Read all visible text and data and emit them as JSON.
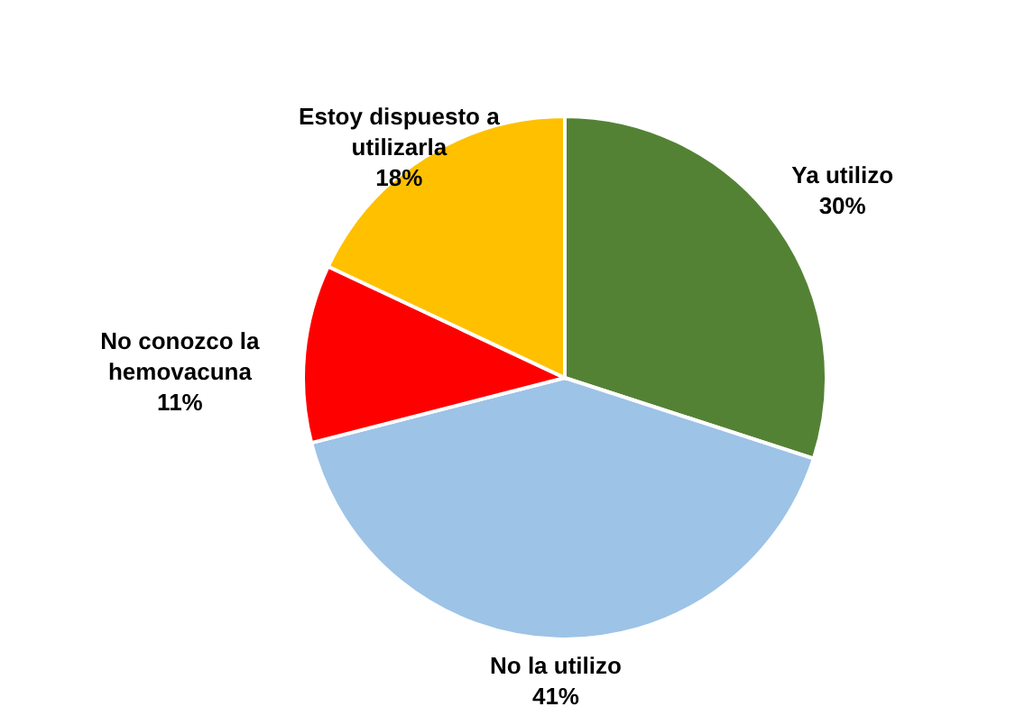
{
  "chart_data": {
    "type": "pie",
    "categories": [
      "Ya utilizo",
      "No la utilizo",
      "No conozco la hemovacuna",
      "Estoy dispuesto a utilizarla"
    ],
    "values": [
      30,
      41,
      11,
      18
    ],
    "value_labels": [
      "30%",
      "41%",
      "11%",
      "18%"
    ],
    "colors": [
      "#548235",
      "#9dc3e6",
      "#ff0000",
      "#ffc000"
    ],
    "legend": false
  }
}
